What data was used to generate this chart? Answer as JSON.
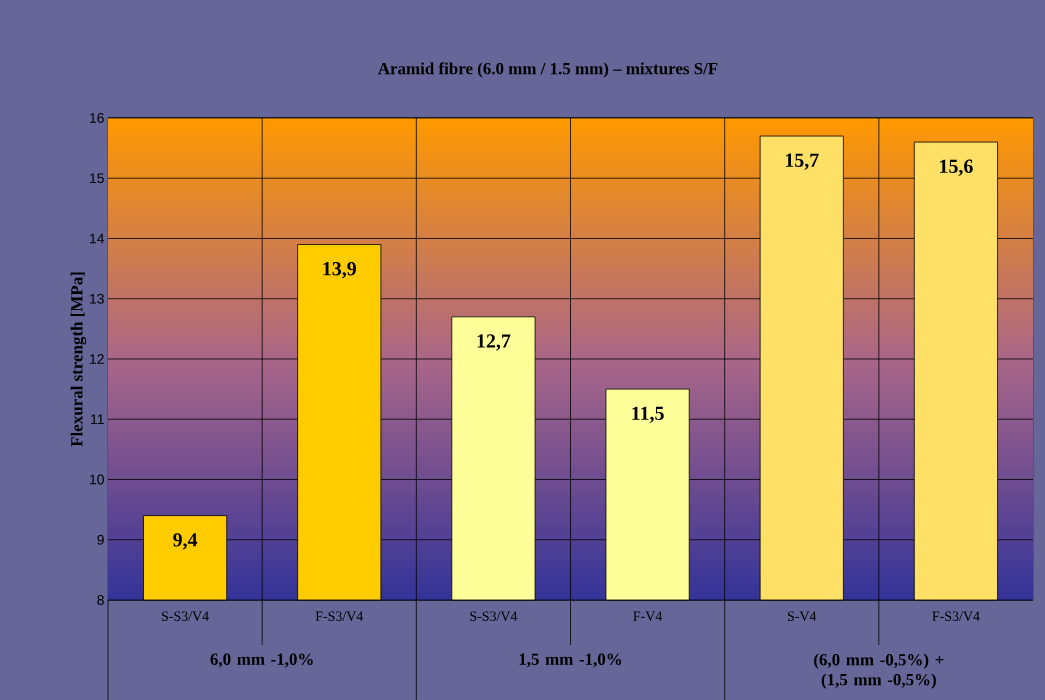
{
  "chart_data": {
    "type": "bar",
    "title": "Aramid fibre (6.0 mm / 1.5 mm) – mixtures S/F",
    "ylabel": "Flexural strength [MPa]",
    "categories": [
      "S-S3/V4",
      "F-S3/V4",
      "S-S3/V4",
      "F-V4",
      "S-V4",
      "F-S3/V4"
    ],
    "values": [
      9.4,
      13.9,
      12.7,
      11.5,
      15.7,
      15.6
    ],
    "value_labels": [
      "9,4",
      "13,9",
      "12,7",
      "11,5",
      "15,7",
      "15,6"
    ],
    "colors": [
      "#ffcc00",
      "#ffcc00",
      "#ffff99",
      "#ffff99",
      "#ffe066",
      "#ffe066"
    ],
    "ylim": [
      8,
      16
    ],
    "yticks": [
      8,
      9,
      10,
      11,
      12,
      13,
      14,
      15,
      16
    ],
    "grid": "y",
    "annotations": [
      "6,0 mm -1,0%",
      "1,5 mm -1,0%",
      "(6,0 mm -0,5%) + (1,5 mm -0,5%)"
    ]
  }
}
